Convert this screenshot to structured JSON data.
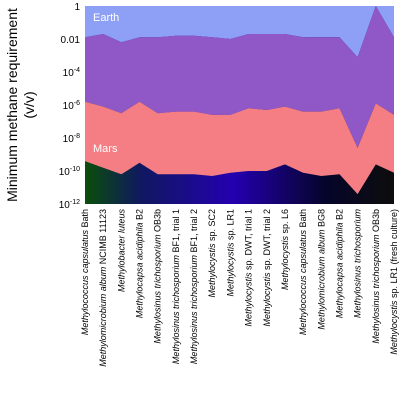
{
  "chart_data": {
    "type": "area",
    "ylabel": "Minimum methane requirement\n(v/v)",
    "yscale": "log",
    "ylim_log10": [
      -12,
      0
    ],
    "yticks": [
      {
        "label": "1",
        "log10": 0
      },
      {
        "label": "0.01",
        "log10": -2
      },
      {
        "label": "10",
        "sup": "-4",
        "log10": -4
      },
      {
        "label": "10",
        "sup": "-6",
        "log10": -6
      },
      {
        "label": "10",
        "sup": "-8",
        "log10": -8
      },
      {
        "label": "10",
        "sup": "-10",
        "log10": -10
      },
      {
        "label": "10",
        "sup": "-12",
        "log10": -12
      }
    ],
    "categories": [
      [
        {
          "t": "Methylococcus capsulatus",
          "i": true
        },
        {
          "t": " Bath",
          "i": false
        }
      ],
      [
        {
          "t": "Methylomicrobium album",
          "i": true
        },
        {
          "t": " NCIMB 11123",
          "i": false
        }
      ],
      [
        {
          "t": "Methylobacter luteus",
          "i": true
        }
      ],
      [
        {
          "t": "Methylocapsa acidiphila",
          "i": true
        },
        {
          "t": " B2",
          "i": false
        }
      ],
      [
        {
          "t": "Methylosinus trichosporium",
          "i": true
        },
        {
          "t": " OB3b",
          "i": false
        }
      ],
      [
        {
          "t": "Methylosinus trichosporium",
          "i": true
        },
        {
          "t": " BF1, trial 1",
          "i": false
        }
      ],
      [
        {
          "t": "Methylosinus trichosporium",
          "i": true
        },
        {
          "t": " BF1, trial 2",
          "i": false
        }
      ],
      [
        {
          "t": "Methylocystis",
          "i": true
        },
        {
          "t": " sp. SC2",
          "i": false
        }
      ],
      [
        {
          "t": "Methylocystis",
          "i": true
        },
        {
          "t": " sp. LR1",
          "i": false
        }
      ],
      [
        {
          "t": "Methylocystis",
          "i": true
        },
        {
          "t": " sp. DWT, trial 1",
          "i": false
        }
      ],
      [
        {
          "t": "Methylocystis",
          "i": true
        },
        {
          "t": " sp. DWT, trial 2",
          "i": false
        }
      ],
      [
        {
          "t": "Methylocystis",
          "i": true
        },
        {
          "t": " sp. L6",
          "i": false
        }
      ],
      [
        {
          "t": "Methylococcus capsulatus",
          "i": true
        },
        {
          "t": " Bath",
          "i": false
        }
      ],
      [
        {
          "t": "Methylomicrobium album",
          "i": true
        },
        {
          "t": " BG8",
          "i": false
        }
      ],
      [
        {
          "t": "Methylocapsa acidiphila",
          "i": true
        },
        {
          "t": " B2",
          "i": false
        }
      ],
      [
        {
          "t": "Methylosinus trichosporium",
          "i": true
        }
      ],
      [
        {
          "t": "Methylosinus trichosporium",
          "i": true
        },
        {
          "t": " OB3b",
          "i": false
        }
      ],
      [
        {
          "t": "Methylocystis",
          "i": true
        },
        {
          "t": " sp. LR1",
          "i": false
        },
        {
          "t": " (fresh culture)",
          "i": false
        }
      ]
    ],
    "series_log10": {
      "earth_bottom": [
        -1.9,
        -1.7,
        -2.2,
        -1.9,
        -1.9,
        -1.8,
        -1.8,
        -1.9,
        -2.0,
        -1.7,
        -1.7,
        -1.7,
        -1.9,
        -1.9,
        -1.9,
        -3.1,
        0.0,
        -1.9
      ],
      "mars_top": [
        -5.8,
        -6.1,
        -6.5,
        -5.8,
        -6.5,
        -6.4,
        -6.4,
        -6.6,
        -6.6,
        -6.2,
        -6.3,
        -6.1,
        -6.4,
        -6.4,
        -6.2,
        -8.6,
        -5.9,
        -6.6
      ],
      "mars_bottom": [
        -9.4,
        -9.8,
        -10.2,
        -9.5,
        -10.2,
        -10.2,
        -10.2,
        -10.3,
        -10.1,
        -10.0,
        -10.0,
        -9.6,
        -10.1,
        -10.3,
        -10.2,
        -11.4,
        -9.6,
        -10.1
      ]
    },
    "region_labels": {
      "earth": "Earth",
      "mars": "Mars"
    },
    "colors": {
      "earth": "#8ea0f6",
      "between": "#9058c6",
      "mars": "#f47e83",
      "gradient": [
        "#0a4e0a",
        "#101860",
        "#2400b0",
        "#05052a",
        "#0d0d0d"
      ]
    }
  }
}
